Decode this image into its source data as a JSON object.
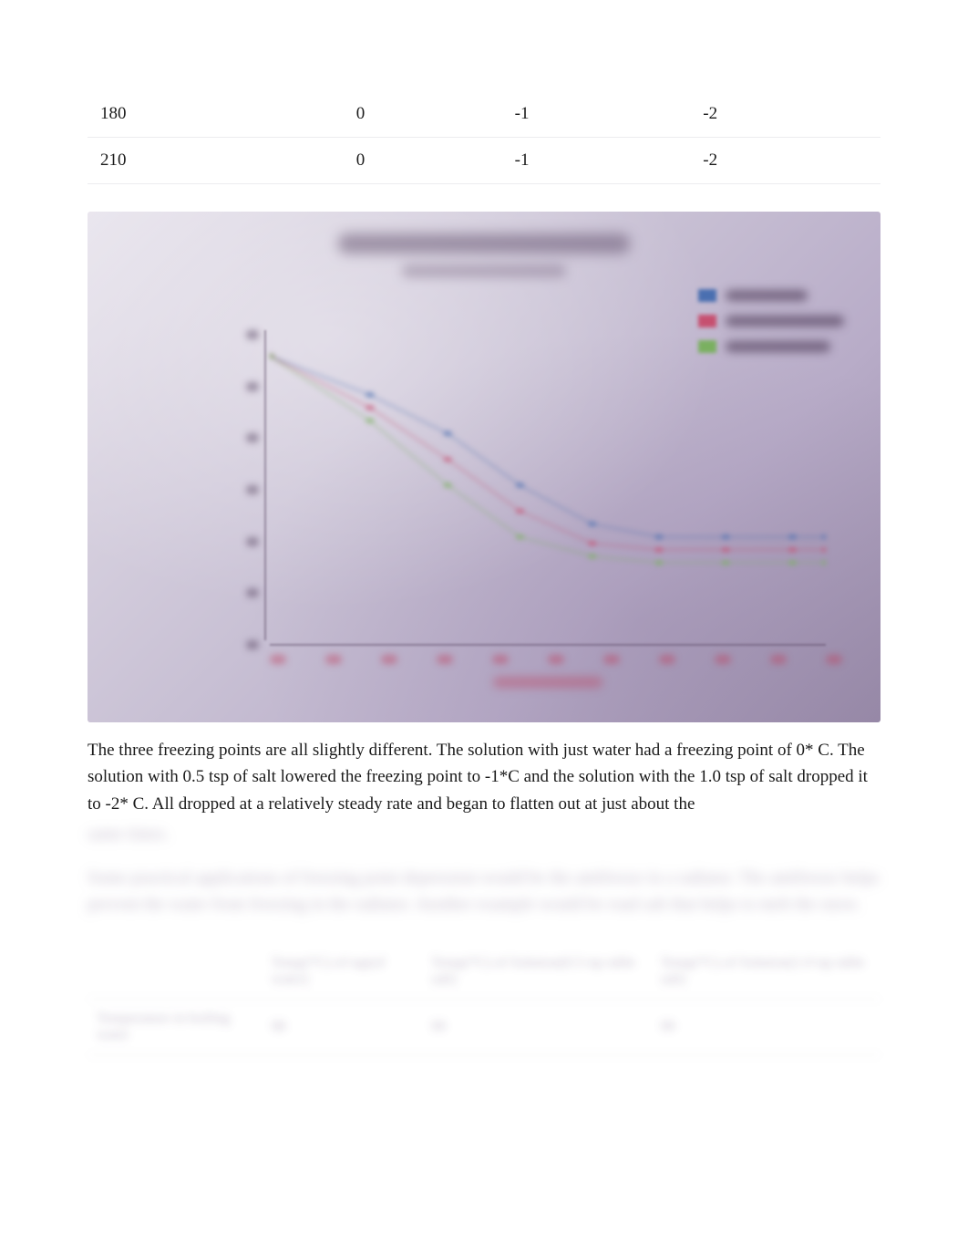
{
  "top_table": {
    "rows": [
      [
        "180",
        "0",
        "-1",
        "-2"
      ],
      [
        "210",
        "0",
        "-1",
        "-2"
      ]
    ]
  },
  "chart": {
    "type": "line",
    "title_placeholder": "Temperature Readings",
    "subtitle_placeholder": "Freezing point data",
    "background_gradient": [
      "#e8e4ed",
      "#988aa8"
    ],
    "series": [
      {
        "name": "tap water",
        "color": "#4a6fb0",
        "points": [
          [
            0,
            14
          ],
          [
            18,
            11
          ],
          [
            32,
            8
          ],
          [
            45,
            4
          ],
          [
            58,
            1
          ],
          [
            70,
            0
          ],
          [
            82,
            0
          ],
          [
            94,
            0
          ],
          [
            100,
            0
          ]
        ]
      },
      {
        "name": "solution 0.5 tsp",
        "color": "#c65070",
        "points": [
          [
            0,
            14
          ],
          [
            18,
            10
          ],
          [
            32,
            6
          ],
          [
            45,
            2
          ],
          [
            58,
            -0.5
          ],
          [
            70,
            -1
          ],
          [
            82,
            -1
          ],
          [
            94,
            -1
          ],
          [
            100,
            -1
          ]
        ]
      },
      {
        "name": "solution 1.0 tsp",
        "color": "#7ab060",
        "points": [
          [
            0,
            14
          ],
          [
            18,
            9
          ],
          [
            32,
            4
          ],
          [
            45,
            0
          ],
          [
            58,
            -1.5
          ],
          [
            70,
            -2
          ],
          [
            82,
            -2
          ],
          [
            94,
            -2
          ],
          [
            100,
            -2
          ]
        ]
      }
    ],
    "y_ticks": [
      16,
      12,
      8,
      4,
      0,
      -4,
      -8
    ],
    "ylim": [
      -8,
      16
    ],
    "x_ticks_count": 10,
    "xlim": [
      0,
      100
    ],
    "x_label_placeholder": "Time (seconds)"
  },
  "paragraph_clear": "The three freezing points are all slightly different. The solution with just water had a freezing point of 0* C. The solution with 0.5 tsp of salt lowered the freezing point to -1*C and the solution with the 1.0 tsp of salt dropped it to -2* C. All dropped at a relatively steady rate and began to flatten out at just about the",
  "paragraph_blurred_tail": "same times.",
  "paragraph_blurred_2": "Some practical applications of freezing point depression would be the antifreeze in a radiator. The antifreeze helps prevent the water from freezing in the radiator. Another example would be road salt that helps to melt the snow.",
  "bottom_table": {
    "headers": [
      "",
      "Temp(*C) of tap(of water)",
      "Temp(*C) of Solution(0.5 tsp table salt)",
      "Temp(*C) of Solution(1.0 tsp table salt)"
    ],
    "rows": [
      [
        "Temperature in boiling water",
        "98",
        "99",
        "99"
      ]
    ]
  }
}
